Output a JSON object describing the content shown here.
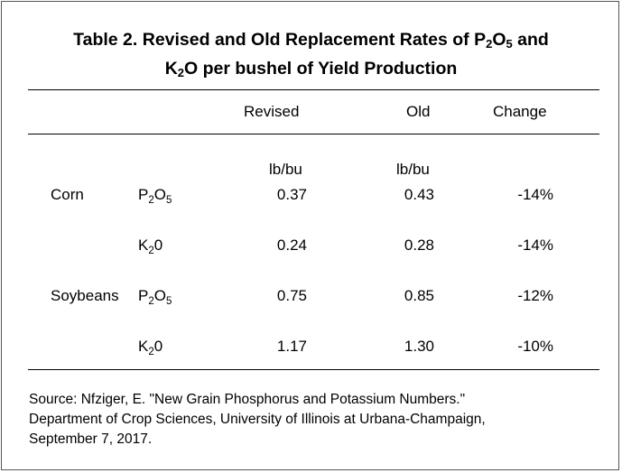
{
  "title": {
    "line1_prefix": "Table 2.  Revised and Old Replacement Rates of P",
    "line1_sub1": "2",
    "line1_mid": "O",
    "line1_sub2": "5",
    "line1_suffix": " and",
    "line2_prefix": "K",
    "line2_sub": "2",
    "line2_suffix": "O per bushel of Yield Production"
  },
  "table": {
    "headers": {
      "revised": "Revised",
      "old": "Old",
      "change": "Change"
    },
    "units": {
      "revised": "lb/bu",
      "old": "lb/bu"
    },
    "rows": [
      {
        "crop": "Corn",
        "nutrient_main": "P",
        "nutrient_sub1": "2",
        "nutrient_mid": "O",
        "nutrient_sub2": "5",
        "revised": "0.37",
        "old": "0.43",
        "change": "-14%"
      },
      {
        "crop": "",
        "nutrient_main": "K",
        "nutrient_sub1": "2",
        "nutrient_mid": "0",
        "nutrient_sub2": "",
        "revised": "0.24",
        "old": "0.28",
        "change": "-14%"
      },
      {
        "crop": "Soybeans",
        "nutrient_main": "P",
        "nutrient_sub1": "2",
        "nutrient_mid": "O",
        "nutrient_sub2": "5",
        "revised": "0.75",
        "old": "0.85",
        "change": "-12%"
      },
      {
        "crop": "",
        "nutrient_main": "K",
        "nutrient_sub1": "2",
        "nutrient_mid": "0",
        "nutrient_sub2": "",
        "revised": "1.17",
        "old": "1.30",
        "change": "-10%"
      }
    ]
  },
  "source": {
    "line1": "Source: Nfziger, E. \"New Grain Phosphorus and Potassium Numbers.\"",
    "line2": "Department of Crop Sciences, University of Illinois at Urbana-Champaign,",
    "line3": "September 7, 2017."
  }
}
